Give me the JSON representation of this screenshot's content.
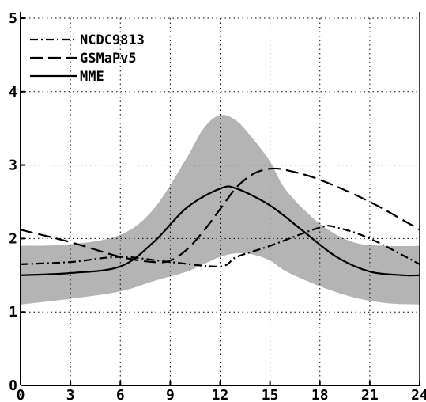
{
  "chart_data": {
    "type": "line",
    "title": "",
    "xlabel": "",
    "ylabel": "",
    "xlim": [
      0,
      24
    ],
    "ylim": [
      0,
      5
    ],
    "x_ticks": [
      0,
      3,
      6,
      9,
      12,
      15,
      18,
      21,
      24
    ],
    "x_tick_labels": [
      "0",
      "3",
      "6",
      "9",
      "12",
      "15",
      "18",
      "21",
      "24"
    ],
    "y_ticks": [
      0,
      1,
      2,
      3,
      4,
      5
    ],
    "y_tick_labels": [
      "0",
      "1",
      "2",
      "3",
      "4",
      "5"
    ],
    "grid": true,
    "legend_position": "top-left",
    "shaded_band": {
      "color": "#b4b4b4",
      "x": [
        0,
        3,
        6,
        8,
        10,
        11,
        12,
        13,
        14,
        15,
        16,
        18,
        20,
        22,
        24
      ],
      "lower": [
        1.1,
        1.18,
        1.28,
        1.42,
        1.55,
        1.65,
        1.75,
        1.8,
        1.78,
        1.7,
        1.55,
        1.35,
        1.2,
        1.12,
        1.1
      ],
      "upper": [
        1.9,
        1.92,
        2.05,
        2.4,
        3.1,
        3.5,
        3.68,
        3.6,
        3.35,
        3.05,
        2.65,
        2.2,
        1.95,
        1.9,
        1.9
      ]
    },
    "series": [
      {
        "name": "NCDC9813",
        "dash": "dash-dot",
        "color": "#000000",
        "x": [
          0,
          3,
          6,
          9,
          12,
          13,
          15,
          18,
          19,
          21,
          24
        ],
        "y": [
          1.65,
          1.68,
          1.75,
          1.68,
          1.62,
          1.75,
          1.9,
          2.15,
          2.15,
          2.0,
          1.65
        ]
      },
      {
        "name": "GSMaPv5",
        "dash": "dash",
        "color": "#000000",
        "x": [
          0,
          3,
          6,
          8,
          9,
          10,
          11,
          12,
          13,
          14,
          15,
          16,
          18,
          21,
          24
        ],
        "y": [
          2.12,
          1.95,
          1.75,
          1.68,
          1.7,
          1.85,
          2.1,
          2.4,
          2.7,
          2.88,
          2.95,
          2.93,
          2.8,
          2.5,
          2.12
        ]
      },
      {
        "name": "MME",
        "dash": "solid",
        "color": "#000000",
        "x": [
          0,
          3,
          6,
          8,
          10,
          12,
          13,
          15,
          17,
          19,
          21,
          23,
          24
        ],
        "y": [
          1.5,
          1.53,
          1.62,
          1.95,
          2.42,
          2.68,
          2.68,
          2.45,
          2.1,
          1.75,
          1.55,
          1.5,
          1.5
        ]
      }
    ]
  }
}
